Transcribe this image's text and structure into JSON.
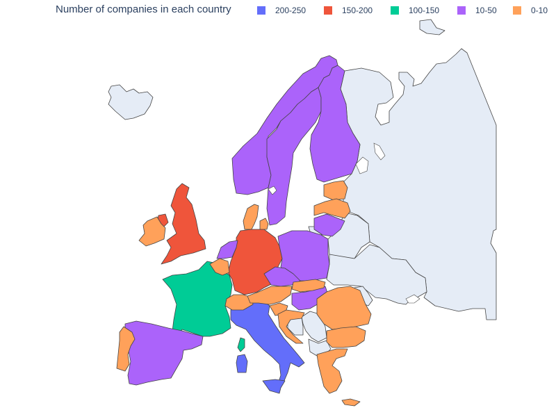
{
  "legend": {
    "title": "Number of companies in each country",
    "items": [
      {
        "label": "200-250",
        "color": "#636efa"
      },
      {
        "label": "150-200",
        "color": "#ef553b"
      },
      {
        "label": "100-150",
        "color": "#00cc96"
      },
      {
        "label": "10-50",
        "color": "#ab63fa"
      },
      {
        "label": "0-10",
        "color": "#ffa15a"
      }
    ]
  },
  "chart_data": {
    "type": "choropleth",
    "title": "Number of companies in each country",
    "scope": "europe",
    "no_data_color": "#e5ecf6",
    "bins": [
      "200-250",
      "150-200",
      "100-150",
      "10-50",
      "0-10"
    ],
    "countries": [
      {
        "name": "Italy",
        "bin": "200-250"
      },
      {
        "name": "United Kingdom",
        "bin": "150-200"
      },
      {
        "name": "Germany",
        "bin": "150-200"
      },
      {
        "name": "France",
        "bin": "100-150"
      },
      {
        "name": "Spain",
        "bin": "10-50"
      },
      {
        "name": "Norway",
        "bin": "10-50"
      },
      {
        "name": "Sweden",
        "bin": "10-50"
      },
      {
        "name": "Finland",
        "bin": "10-50"
      },
      {
        "name": "Poland",
        "bin": "10-50"
      },
      {
        "name": "Czech Republic",
        "bin": "10-50"
      },
      {
        "name": "Hungary",
        "bin": "10-50"
      },
      {
        "name": "Lithuania",
        "bin": "10-50"
      },
      {
        "name": "Netherlands",
        "bin": "10-50"
      },
      {
        "name": "Portugal",
        "bin": "0-10"
      },
      {
        "name": "Ireland",
        "bin": "0-10"
      },
      {
        "name": "Denmark",
        "bin": "0-10"
      },
      {
        "name": "Estonia",
        "bin": "0-10"
      },
      {
        "name": "Latvia",
        "bin": "0-10"
      },
      {
        "name": "Belgium",
        "bin": "0-10"
      },
      {
        "name": "Luxembourg",
        "bin": "0-10"
      },
      {
        "name": "Switzerland",
        "bin": "0-10"
      },
      {
        "name": "Austria",
        "bin": "0-10"
      },
      {
        "name": "Slovakia",
        "bin": "0-10"
      },
      {
        "name": "Slovenia",
        "bin": "0-10"
      },
      {
        "name": "Croatia",
        "bin": "0-10"
      },
      {
        "name": "Romania",
        "bin": "0-10"
      },
      {
        "name": "Bulgaria",
        "bin": "0-10"
      },
      {
        "name": "Greece",
        "bin": "0-10"
      },
      {
        "name": "Cyprus",
        "bin": "0-10"
      }
    ],
    "no_data_countries": [
      "Iceland",
      "Russia",
      "Belarus",
      "Ukraine",
      "Moldova",
      "Serbia",
      "Bosnia and Herzegovina",
      "Montenegro",
      "Albania",
      "North Macedonia",
      "Kosovo",
      "Svalbard"
    ],
    "showlegend": true,
    "legend_placement": "top"
  }
}
